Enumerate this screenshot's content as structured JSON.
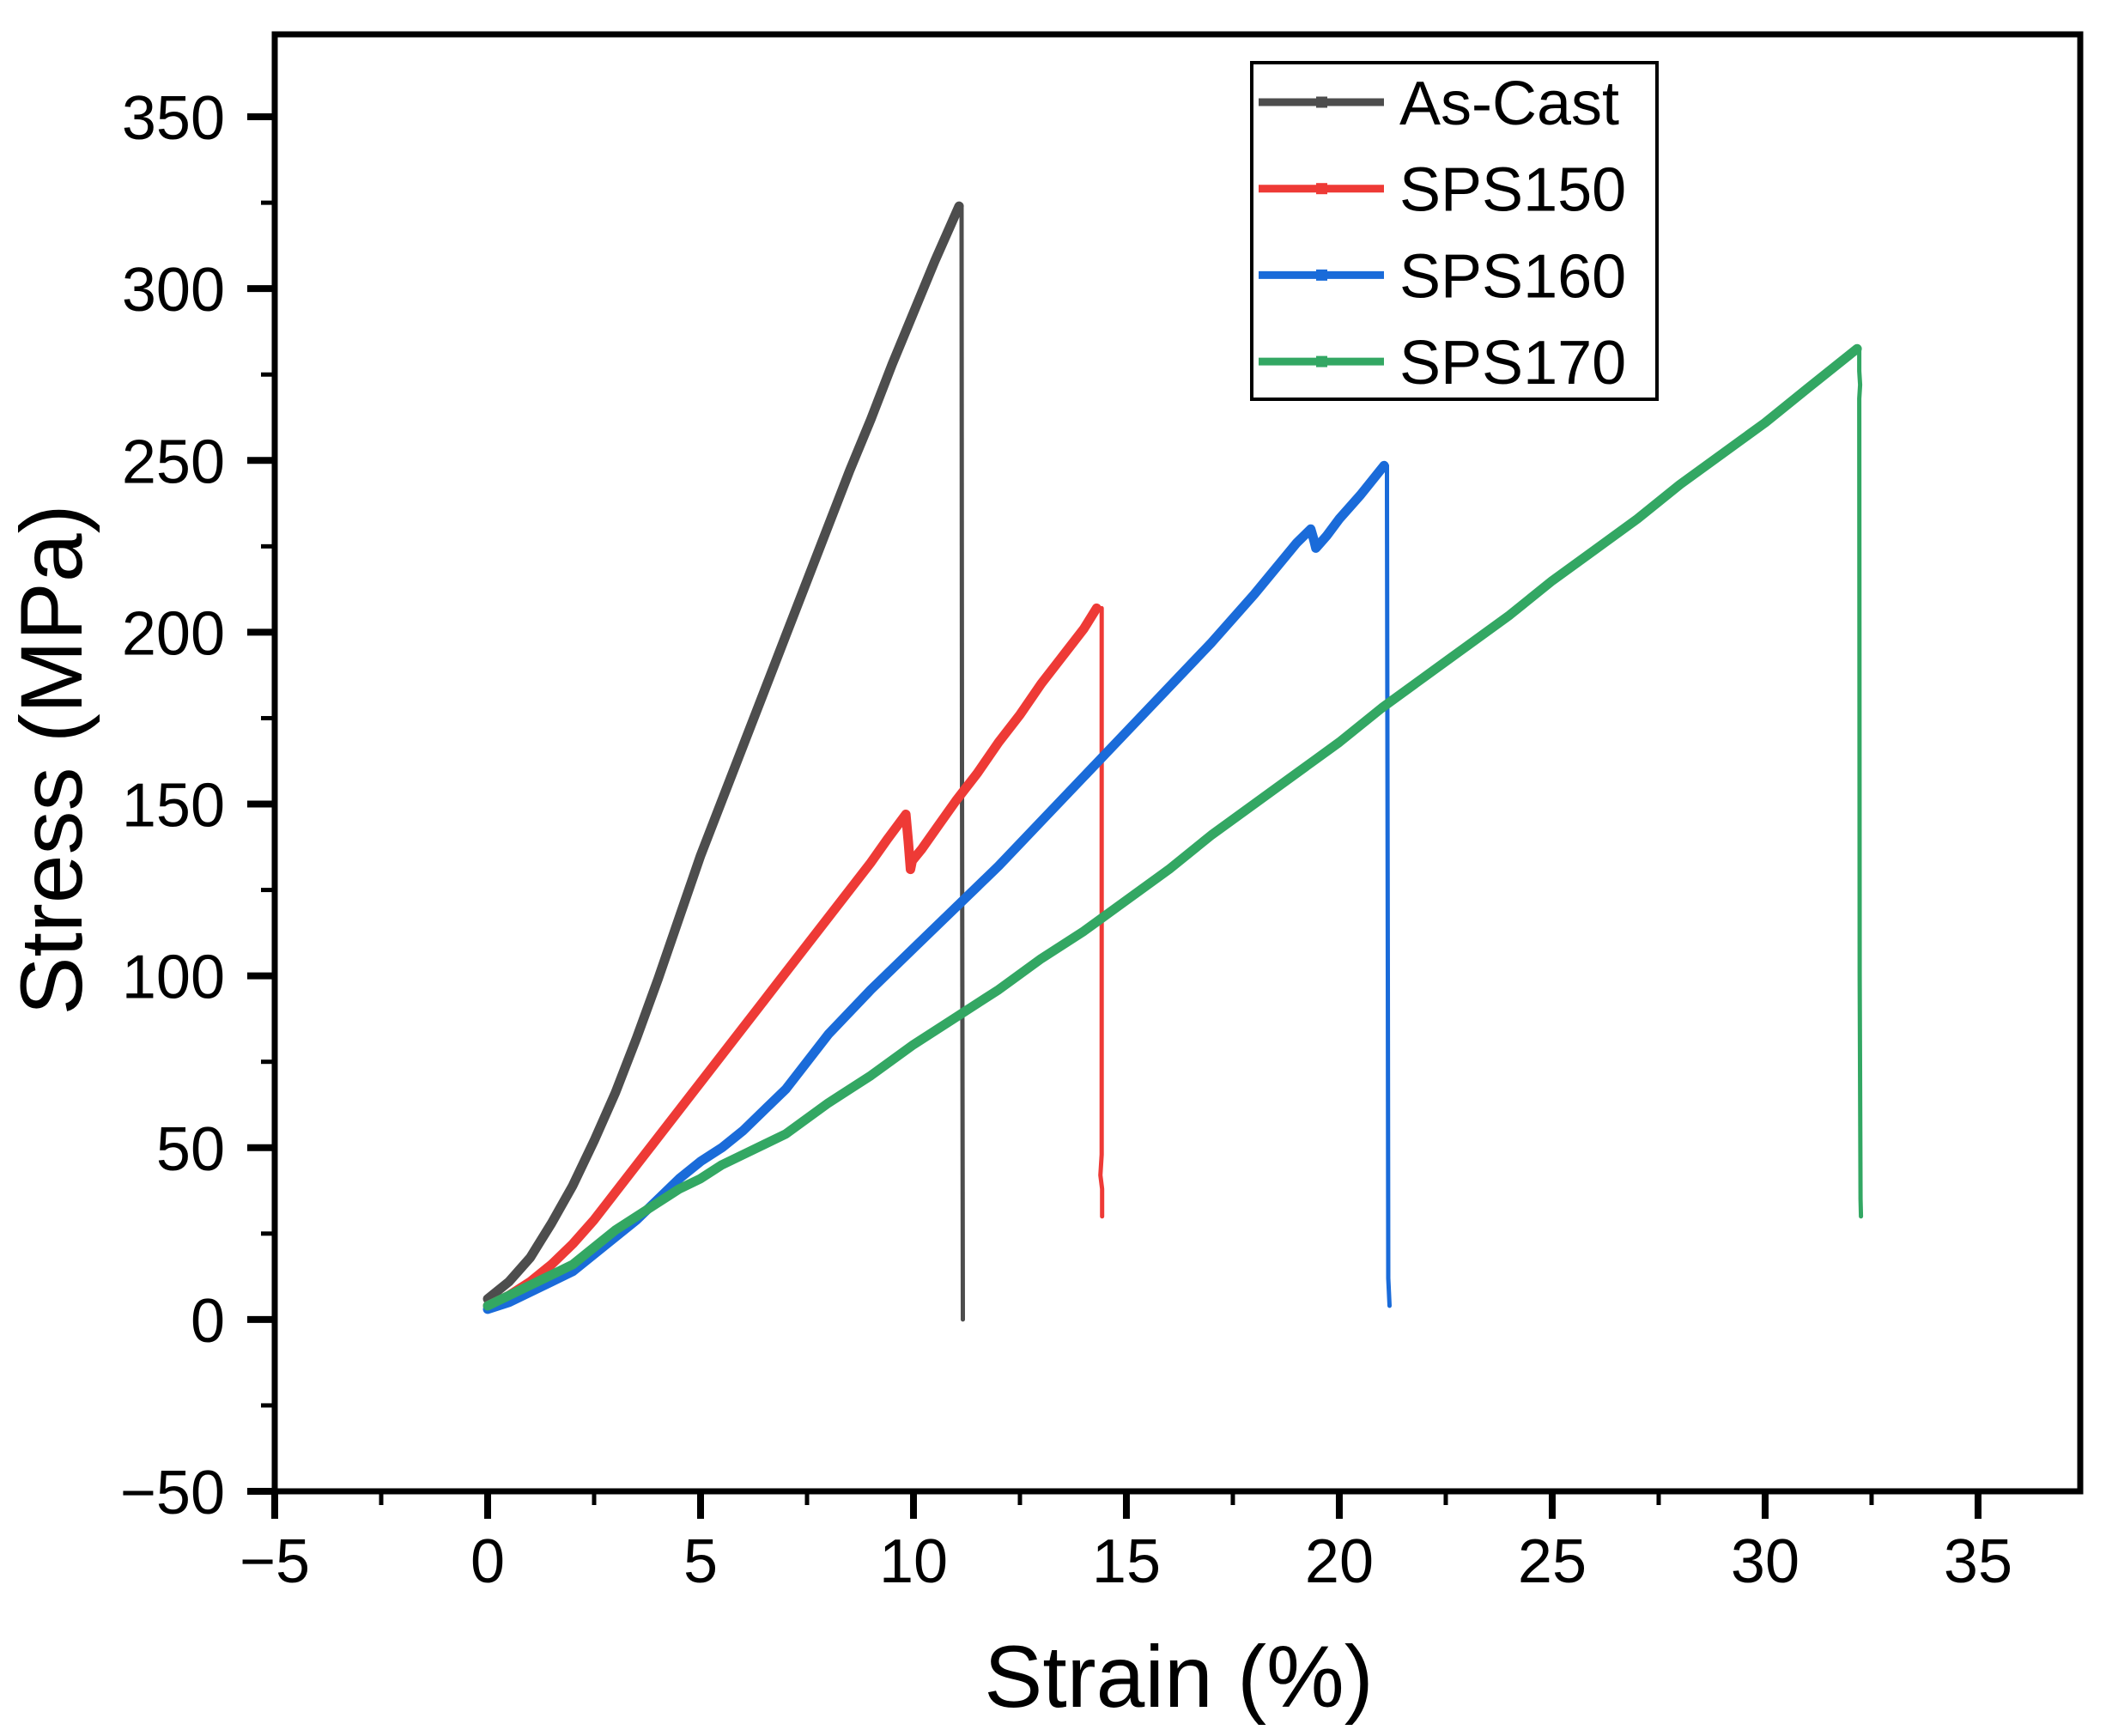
{
  "figure": {
    "background": "#ffffff",
    "frame_color": "#000000"
  },
  "chart_data": {
    "type": "line",
    "title": "",
    "xlabel": "Strain (%)",
    "ylabel": "Stress (MPa)",
    "xlim": [
      -5,
      37.4
    ],
    "ylim": [
      -50,
      374
    ],
    "x_major_ticks": [
      -5,
      0,
      5,
      10,
      15,
      20,
      25,
      30,
      35
    ],
    "x_minor_step": 2.5,
    "y_major_ticks": [
      -50,
      0,
      50,
      100,
      150,
      200,
      250,
      300,
      350
    ],
    "y_minor_step": 25,
    "grid": false,
    "legend_position": "top-right",
    "series": [
      {
        "name": "As-Cast",
        "color": "#4D4D4D",
        "peak_stress_mpa": 324,
        "fracture_strain_pct": 11.1,
        "points": [
          [
            0,
            6
          ],
          [
            0.5,
            11
          ],
          [
            1,
            18
          ],
          [
            1.5,
            28
          ],
          [
            2,
            39
          ],
          [
            2.5,
            52
          ],
          [
            3,
            66
          ],
          [
            3.5,
            82
          ],
          [
            4,
            99
          ],
          [
            4.5,
            117
          ],
          [
            5,
            135
          ],
          [
            5.5,
            151
          ],
          [
            6,
            167
          ],
          [
            6.5,
            183
          ],
          [
            7,
            199
          ],
          [
            7.5,
            215
          ],
          [
            8,
            231
          ],
          [
            8.5,
            247
          ],
          [
            9,
            262
          ],
          [
            9.5,
            278
          ],
          [
            10,
            293
          ],
          [
            10.5,
            308
          ],
          [
            11.07,
            324
          ]
        ],
        "drop": [
          [
            11.13,
            324
          ],
          [
            11.14,
            160
          ],
          [
            11.16,
            0
          ]
        ]
      },
      {
        "name": "SPS150",
        "color": "#EE3A36",
        "peak_stress_mpa": 207,
        "fracture_strain_pct": 14.4,
        "points": [
          [
            0,
            4
          ],
          [
            0.5,
            7
          ],
          [
            1,
            11
          ],
          [
            1.5,
            16
          ],
          [
            2,
            22
          ],
          [
            2.5,
            29
          ],
          [
            3,
            37
          ],
          [
            3.5,
            45
          ],
          [
            4,
            53
          ],
          [
            4.5,
            61
          ],
          [
            5,
            69
          ],
          [
            5.5,
            77
          ],
          [
            6,
            85
          ],
          [
            6.5,
            93
          ],
          [
            7,
            101
          ],
          [
            7.5,
            109
          ],
          [
            8,
            117
          ],
          [
            8.5,
            125
          ],
          [
            9,
            133
          ],
          [
            9.4,
            140
          ],
          [
            9.82,
            147
          ],
          [
            9.88,
            139
          ],
          [
            9.93,
            131
          ],
          [
            9.97,
            133.5
          ],
          [
            10.2,
            137
          ],
          [
            10.6,
            144
          ],
          [
            11,
            151
          ],
          [
            11.5,
            159
          ],
          [
            12,
            168
          ],
          [
            12.5,
            176
          ],
          [
            13,
            185
          ],
          [
            13.5,
            193
          ],
          [
            14,
            201
          ],
          [
            14.3,
            207
          ]
        ],
        "drop": [
          [
            14.42,
            207
          ],
          [
            14.42,
            48
          ],
          [
            14.39,
            42
          ],
          [
            14.43,
            38
          ],
          [
            14.43,
            30
          ]
        ]
      },
      {
        "name": "SPS160",
        "color": "#1A6BD9",
        "peak_stress_mpa": 249,
        "fracture_strain_pct": 21.2,
        "points": [
          [
            0,
            3
          ],
          [
            0.5,
            5
          ],
          [
            1,
            8
          ],
          [
            1.5,
            11
          ],
          [
            2,
            14
          ],
          [
            2.5,
            19
          ],
          [
            3,
            24
          ],
          [
            3.5,
            29
          ],
          [
            4,
            35
          ],
          [
            4.5,
            41
          ],
          [
            5,
            46
          ],
          [
            5.5,
            50
          ],
          [
            6,
            55
          ],
          [
            6.5,
            61
          ],
          [
            7,
            67
          ],
          [
            7.5,
            75
          ],
          [
            8,
            83
          ],
          [
            9,
            96
          ],
          [
            10,
            108
          ],
          [
            11,
            120
          ],
          [
            12,
            132
          ],
          [
            13,
            145
          ],
          [
            14,
            158
          ],
          [
            15,
            171
          ],
          [
            16,
            184
          ],
          [
            17,
            197
          ],
          [
            18,
            211
          ],
          [
            19,
            226
          ],
          [
            19.33,
            230
          ],
          [
            19.4,
            227
          ],
          [
            19.45,
            224.5
          ],
          [
            19.7,
            228
          ],
          [
            20,
            233
          ],
          [
            20.5,
            240
          ],
          [
            21.05,
            248.5
          ]
        ],
        "drop": [
          [
            21.12,
            248.5
          ],
          [
            21.12,
            240
          ],
          [
            21.14,
            100
          ],
          [
            21.15,
            12
          ],
          [
            21.18,
            4
          ]
        ]
      },
      {
        "name": "SPS170",
        "color": "#33A763",
        "peak_stress_mpa": 283,
        "fracture_strain_pct": 32.4,
        "points": [
          [
            0,
            4
          ],
          [
            0.5,
            7
          ],
          [
            1,
            10
          ],
          [
            1.5,
            13
          ],
          [
            2,
            16
          ],
          [
            2.5,
            21
          ],
          [
            3,
            26
          ],
          [
            3.5,
            30
          ],
          [
            4,
            34
          ],
          [
            4.5,
            38
          ],
          [
            5,
            41
          ],
          [
            5.5,
            45
          ],
          [
            6,
            48
          ],
          [
            7,
            54
          ],
          [
            8,
            63
          ],
          [
            9,
            71
          ],
          [
            10,
            80
          ],
          [
            11,
            88
          ],
          [
            12,
            96
          ],
          [
            13,
            105
          ],
          [
            14,
            113
          ],
          [
            15,
            122
          ],
          [
            16,
            131
          ],
          [
            17,
            141
          ],
          [
            18,
            150
          ],
          [
            19,
            159
          ],
          [
            20,
            168
          ],
          [
            21,
            178
          ],
          [
            22,
            187
          ],
          [
            23,
            196
          ],
          [
            24,
            205
          ],
          [
            25,
            215
          ],
          [
            26,
            224
          ],
          [
            27,
            233
          ],
          [
            28,
            243
          ],
          [
            29,
            252
          ],
          [
            30,
            261
          ],
          [
            31,
            271
          ],
          [
            32.16,
            282.5
          ]
        ],
        "drop": [
          [
            32.21,
            282.5
          ],
          [
            32.21,
            276
          ],
          [
            32.23,
            272
          ],
          [
            32.21,
            268
          ],
          [
            32.22,
            100
          ],
          [
            32.24,
            35
          ],
          [
            32.25,
            30
          ]
        ]
      }
    ]
  }
}
